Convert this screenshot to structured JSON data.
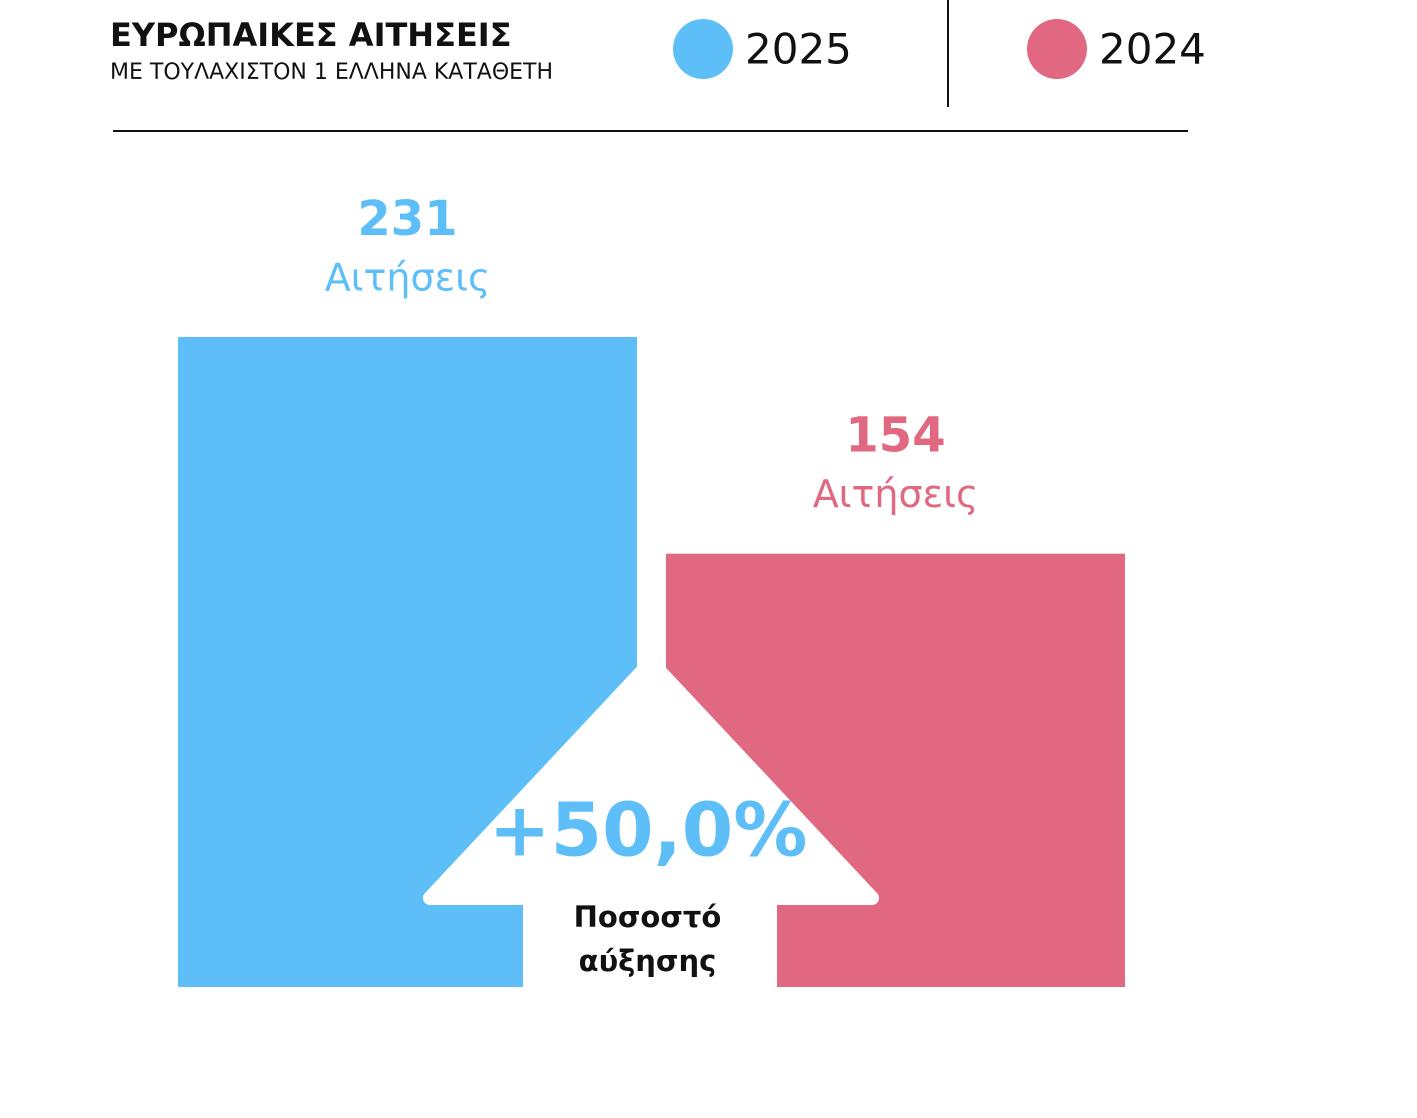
{
  "chart_data": {
    "type": "bar",
    "title": "ΕΥΡΩΠΑΙΚΕΣ ΑΙΤΗΣΕΙΣ",
    "subtitle": "ΜΕ ΤΟΥΛΑΧΙΣΤΟΝ 1 ΕΛΛΗΝΑ ΚΑΤΑΘΕΤΗ",
    "value_unit": "Αιτήσεις",
    "series": [
      {
        "name": "2025",
        "color": "#5ebff8",
        "values": [
          231
        ]
      },
      {
        "name": "2024",
        "color": "#e06880",
        "values": [
          154
        ]
      }
    ],
    "annotation": {
      "text": "+50,0%",
      "label": "Ποσοστό αύξησης"
    }
  }
}
